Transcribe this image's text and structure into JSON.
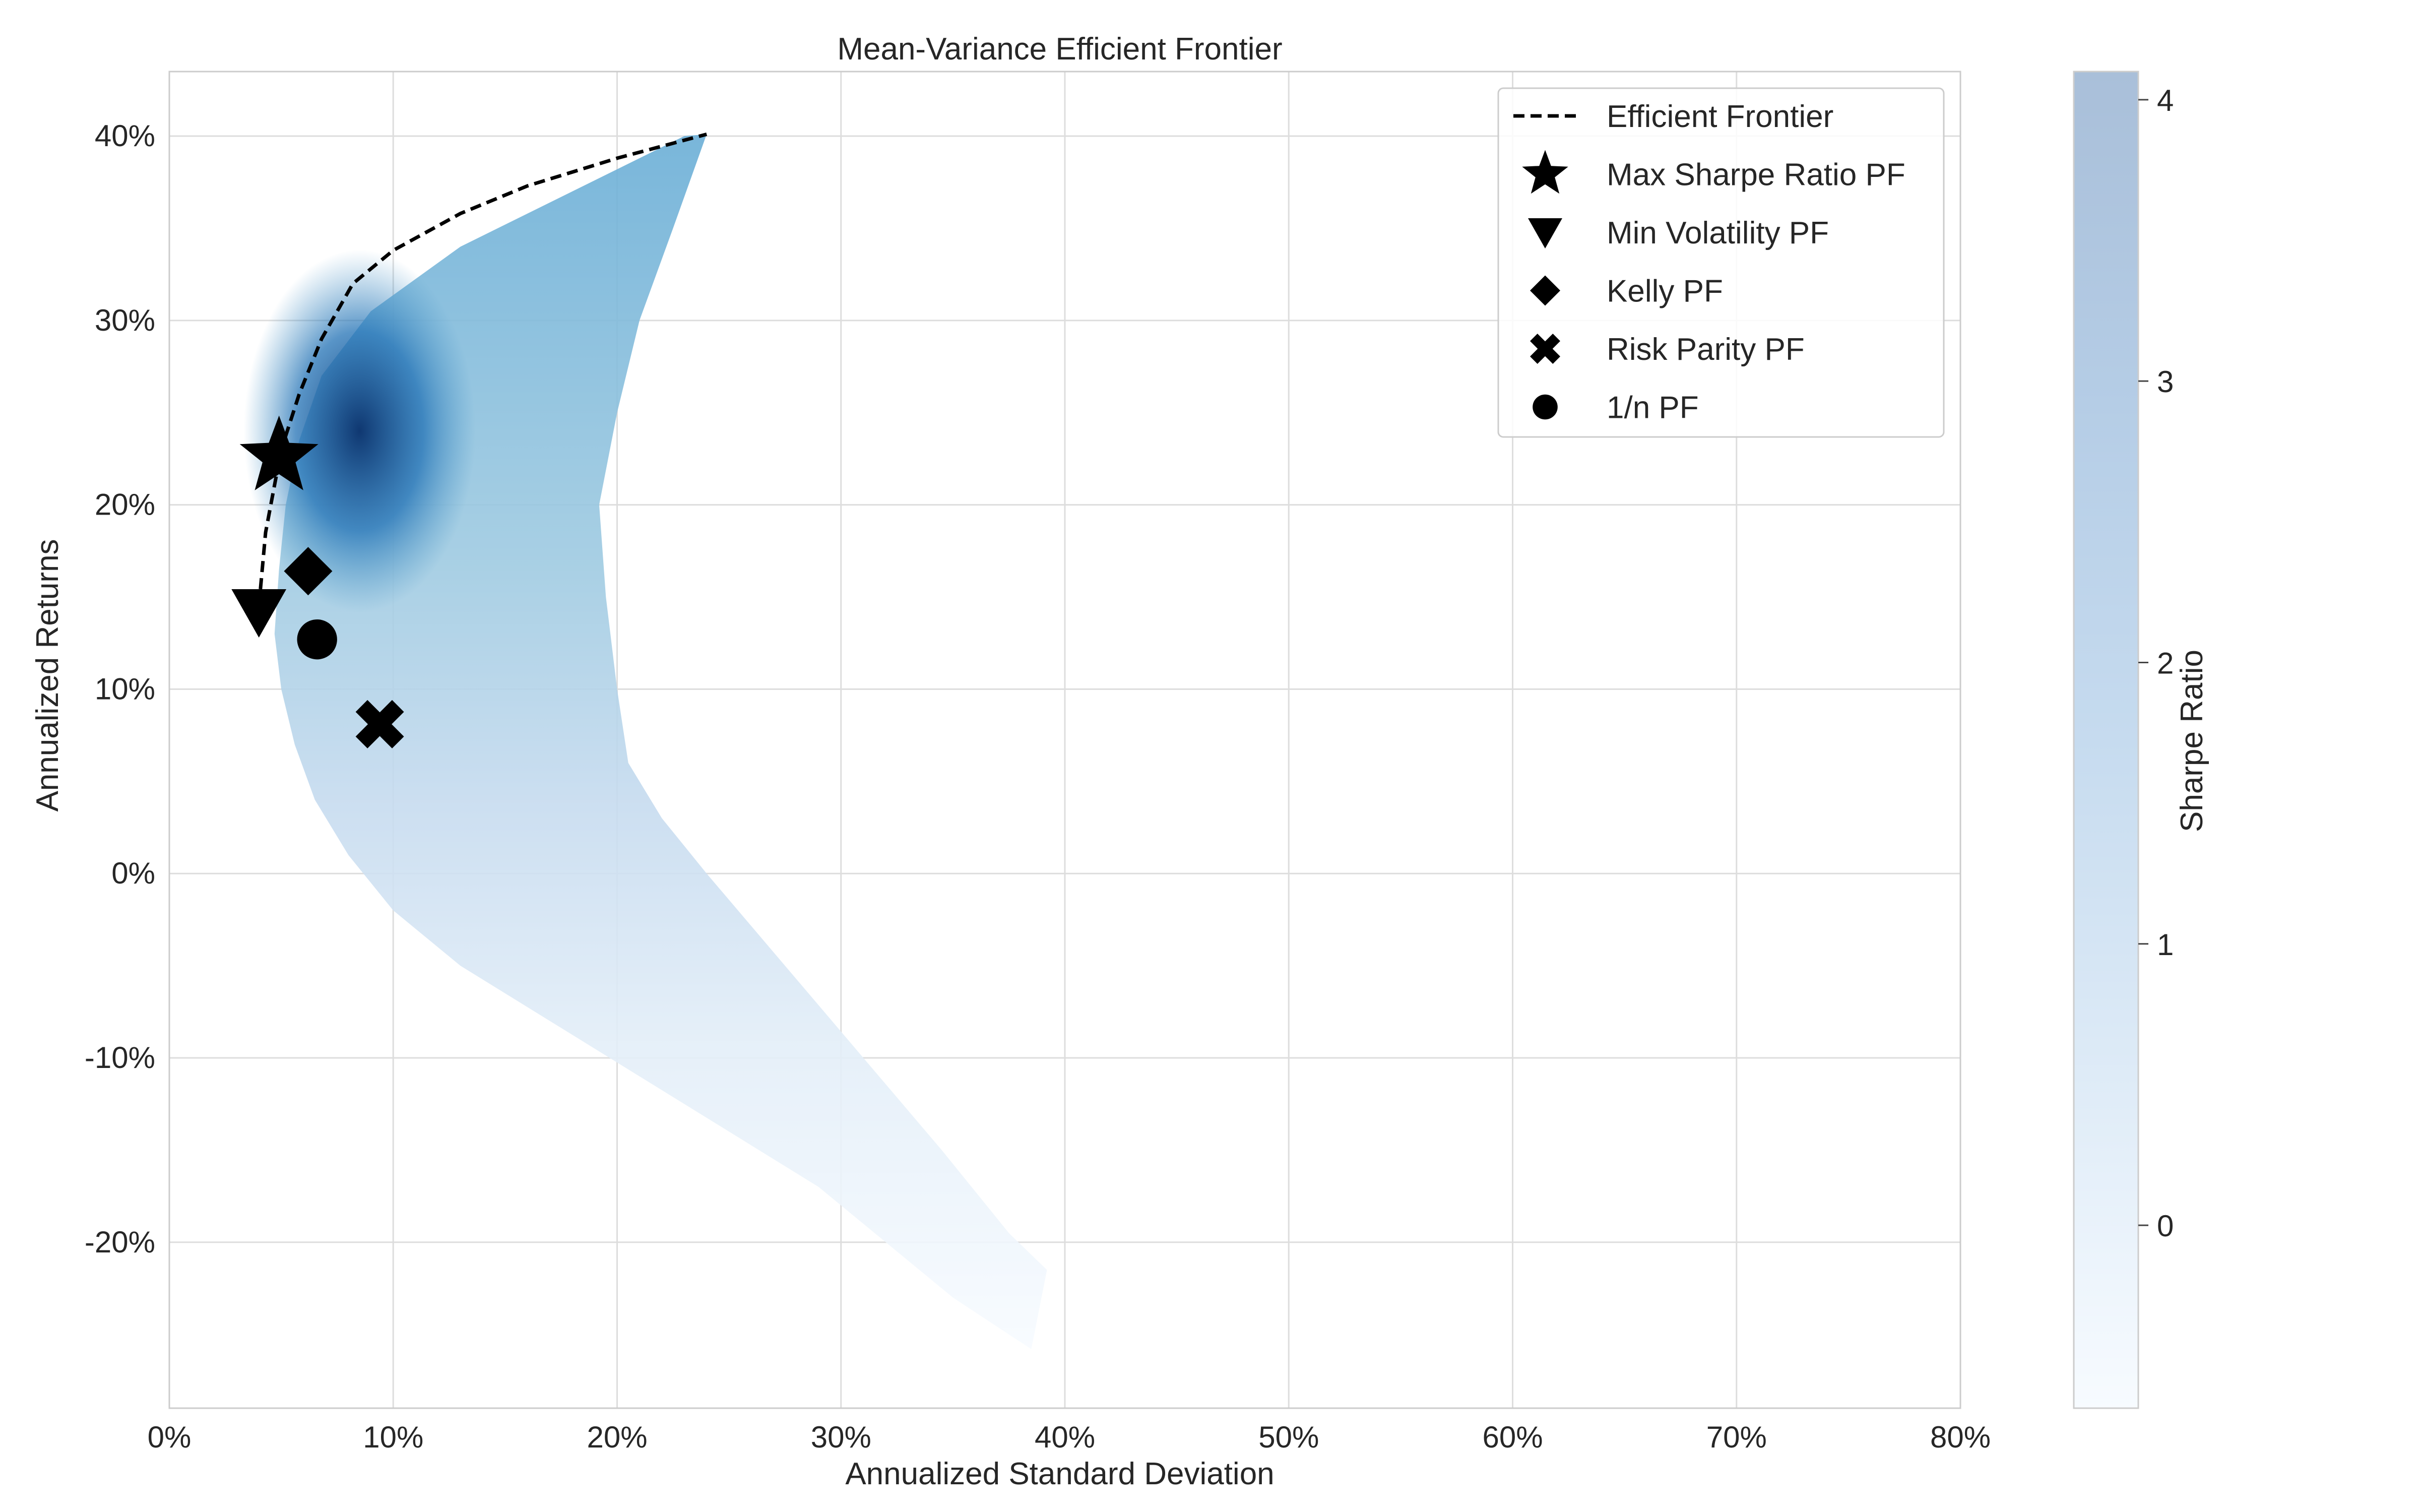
{
  "chart_data": {
    "type": "scatter",
    "title": "Mean-Variance Efficient Frontier",
    "xlabel": "Annualized Standard Deviation",
    "ylabel": "Annualized Returns",
    "xlim": [
      0,
      0.8
    ],
    "ylim": [
      -0.29,
      0.435
    ],
    "x_ticks": [
      0,
      0.1,
      0.2,
      0.3,
      0.4,
      0.5,
      0.6,
      0.7,
      0.8
    ],
    "x_tick_labels": [
      "0%",
      "10%",
      "20%",
      "30%",
      "40%",
      "50%",
      "60%",
      "70%",
      "80%"
    ],
    "y_ticks": [
      -0.2,
      -0.1,
      0.0,
      0.1,
      0.2,
      0.3,
      0.4
    ],
    "y_tick_labels": [
      "-20%",
      "-10%",
      "0%",
      "10%",
      "20%",
      "30%",
      "40%"
    ],
    "grid": true,
    "legend_position": "top-right",
    "colormap": "Blues",
    "colorbar": {
      "label": "Sharpe Ratio",
      "range": [
        -0.65,
        4.1
      ],
      "ticks": [
        0,
        1,
        2,
        3,
        4
      ],
      "tick_labels": [
        "0",
        "1",
        "2",
        "3",
        "4"
      ]
    },
    "cloud_envelope": {
      "left_edge": [
        {
          "std": 0.23,
          "ret": 0.4
        },
        {
          "std": 0.18,
          "ret": 0.37
        },
        {
          "std": 0.13,
          "ret": 0.34
        },
        {
          "std": 0.09,
          "ret": 0.305
        },
        {
          "std": 0.068,
          "ret": 0.27
        },
        {
          "std": 0.058,
          "ret": 0.235
        },
        {
          "std": 0.052,
          "ret": 0.2
        },
        {
          "std": 0.049,
          "ret": 0.165
        },
        {
          "std": 0.047,
          "ret": 0.13
        },
        {
          "std": 0.05,
          "ret": 0.1
        },
        {
          "std": 0.056,
          "ret": 0.07
        },
        {
          "std": 0.065,
          "ret": 0.04
        },
        {
          "std": 0.08,
          "ret": 0.01
        },
        {
          "std": 0.1,
          "ret": -0.02
        },
        {
          "std": 0.13,
          "ret": -0.05
        },
        {
          "std": 0.17,
          "ret": -0.08
        },
        {
          "std": 0.21,
          "ret": -0.11
        },
        {
          "std": 0.25,
          "ret": -0.14
        },
        {
          "std": 0.29,
          "ret": -0.17
        },
        {
          "std": 0.32,
          "ret": -0.2
        },
        {
          "std": 0.35,
          "ret": -0.23
        },
        {
          "std": 0.385,
          "ret": -0.258
        }
      ],
      "right_edge": [
        {
          "std": 0.24,
          "ret": 0.401
        },
        {
          "std": 0.225,
          "ret": 0.35
        },
        {
          "std": 0.21,
          "ret": 0.3
        },
        {
          "std": 0.2,
          "ret": 0.25
        },
        {
          "std": 0.192,
          "ret": 0.2
        },
        {
          "std": 0.195,
          "ret": 0.15
        },
        {
          "std": 0.2,
          "ret": 0.1
        },
        {
          "std": 0.205,
          "ret": 0.06
        },
        {
          "std": 0.22,
          "ret": 0.03
        },
        {
          "std": 0.24,
          "ret": 0.0
        },
        {
          "std": 0.275,
          "ret": -0.05
        },
        {
          "std": 0.31,
          "ret": -0.1
        },
        {
          "std": 0.345,
          "ret": -0.15
        },
        {
          "std": 0.375,
          "ret": -0.195
        },
        {
          "std": 0.392,
          "ret": -0.215
        }
      ]
    },
    "efficient_frontier": {
      "name": "Efficient Frontier",
      "points": [
        {
          "std": 0.04,
          "ret": 0.145
        },
        {
          "std": 0.043,
          "ret": 0.185
        },
        {
          "std": 0.05,
          "ret": 0.23
        },
        {
          "std": 0.058,
          "ret": 0.26
        },
        {
          "std": 0.068,
          "ret": 0.29
        },
        {
          "std": 0.082,
          "ret": 0.32
        },
        {
          "std": 0.1,
          "ret": 0.338
        },
        {
          "std": 0.13,
          "ret": 0.358
        },
        {
          "std": 0.16,
          "ret": 0.373
        },
        {
          "std": 0.2,
          "ret": 0.388
        },
        {
          "std": 0.24,
          "ret": 0.401
        }
      ]
    },
    "portfolios": [
      {
        "name": "Max Sharpe Ratio PF",
        "marker": "star",
        "std": 0.049,
        "ret": 0.226
      },
      {
        "name": "Min Volatility PF",
        "marker": "triangle-down",
        "std": 0.04,
        "ret": 0.142
      },
      {
        "name": "Kelly PF",
        "marker": "diamond",
        "std": 0.062,
        "ret": 0.164
      },
      {
        "name": "Risk Parity PF",
        "marker": "x-filled",
        "std": 0.094,
        "ret": 0.081
      },
      {
        "name": "1/n PF",
        "marker": "circle",
        "std": 0.066,
        "ret": 0.127
      }
    ],
    "legend": [
      {
        "label": "Efficient Frontier",
        "symbol": "dashed-line"
      },
      {
        "label": "Max Sharpe Ratio PF",
        "symbol": "star"
      },
      {
        "label": "Min Volatility PF",
        "symbol": "triangle-down"
      },
      {
        "label": "Kelly PF",
        "symbol": "diamond"
      },
      {
        "label": "Risk Parity PF",
        "symbol": "x-filled"
      },
      {
        "label": "1/n PF",
        "symbol": "circle"
      }
    ]
  }
}
